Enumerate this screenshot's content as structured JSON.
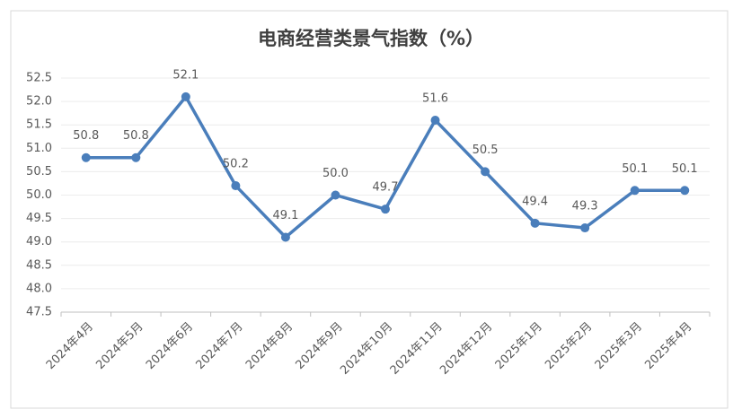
{
  "chart_data": {
    "type": "line",
    "title": "电商经营类景气指数（%）",
    "categories": [
      "2024年4月",
      "2024年5月",
      "2024年6月",
      "2024年7月",
      "2024年8月",
      "2024年9月",
      "2024年10月",
      "2024年11月",
      "2024年12月",
      "2025年1月",
      "2025年2月",
      "2025年3月",
      "2025年4月"
    ],
    "values": [
      50.8,
      50.8,
      52.1,
      50.2,
      49.1,
      50.0,
      49.7,
      51.6,
      50.5,
      49.4,
      49.3,
      50.1,
      50.1
    ],
    "value_labels": [
      "50.8",
      "50.8",
      "52.1",
      "50.2",
      "49.1",
      "50.0",
      "49.7",
      "51.6",
      "50.5",
      "49.4",
      "49.3",
      "50.1",
      "50.1"
    ],
    "color": "#4a7ebb",
    "ylim": [
      47.5,
      52.5
    ],
    "yticks": [
      47.5,
      {
        "value": 48,
        "label": "48.0"
      },
      48.5,
      {
        "value": 49,
        "label": "49.0"
      },
      49.5,
      {
        "value": 50,
        "label": "50.0"
      },
      50.5,
      {
        "value": 51,
        "label": "51.0"
      },
      51.5,
      {
        "value": 52,
        "label": "52.0"
      },
      52.5
    ],
    "grid": true
  }
}
